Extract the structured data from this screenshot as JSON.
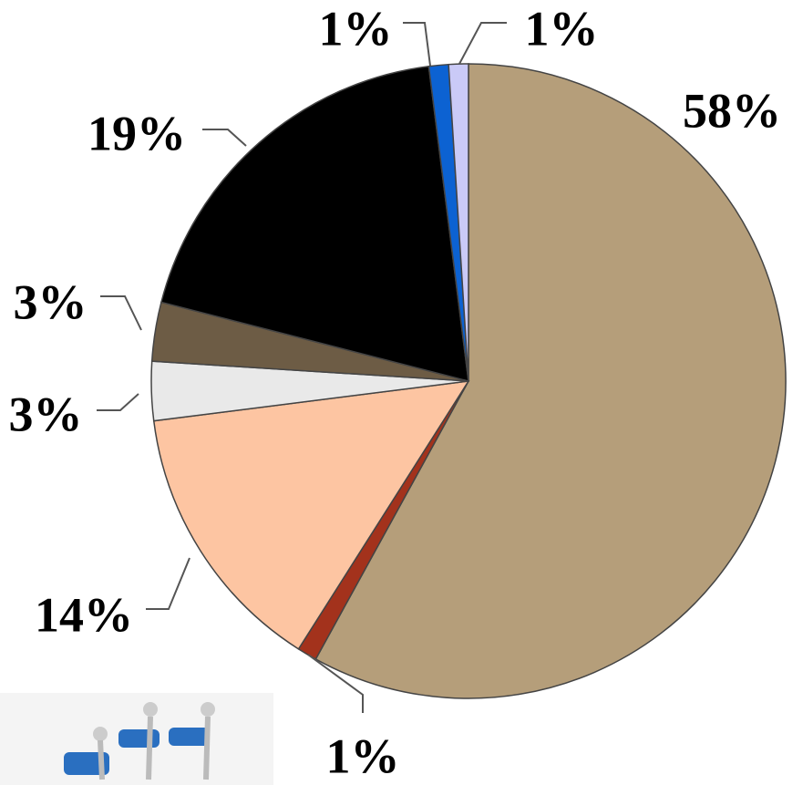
{
  "chart_data": {
    "type": "pie",
    "values": [
      58,
      1,
      14,
      3,
      3,
      19,
      1,
      1
    ],
    "value_labels": [
      "58%",
      "1%",
      "14%",
      "3%",
      "3%",
      "19%",
      "1%",
      "1%"
    ],
    "colors": [
      "#b59e7a",
      "#a3321c",
      "#fdc5a2",
      "#e9e9e9",
      "#6d5c45",
      "#000000",
      "#0c62d2",
      "#cacaf7"
    ]
  }
}
